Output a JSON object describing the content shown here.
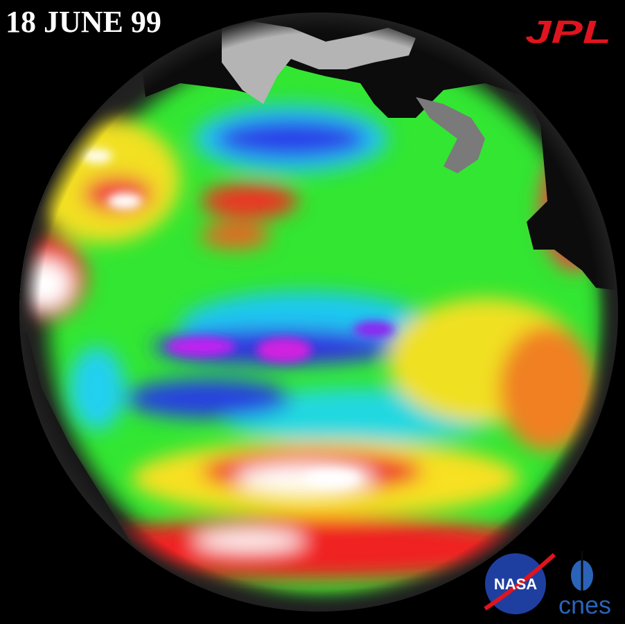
{
  "header": {
    "date": "18 JUNE 99"
  },
  "logos": {
    "jpl": "JPL",
    "nasa": "NASA",
    "cnes": "cnes"
  }
}
